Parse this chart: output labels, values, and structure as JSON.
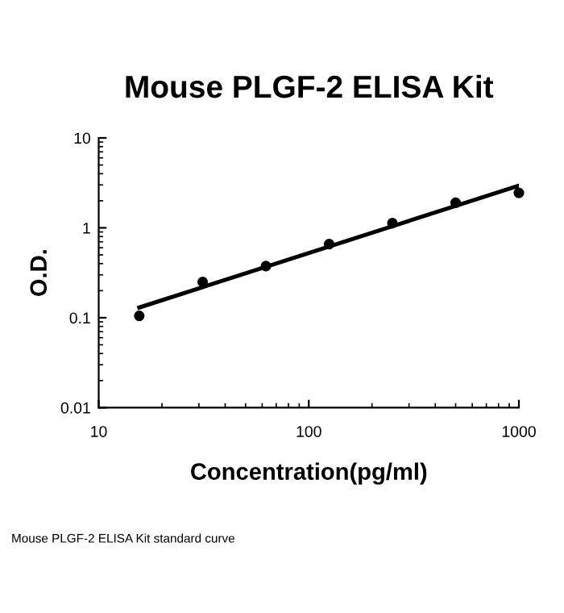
{
  "chart_data": {
    "type": "scatter",
    "title": "Mouse PLGF-2 ELISA Kit",
    "xlabel": "Concentration(pg/ml)",
    "ylabel": "O.D.",
    "log": "xy",
    "grid": false,
    "legend": false,
    "marker": "circle",
    "xlim": [
      10,
      1000
    ],
    "ylim": [
      0.01,
      10
    ],
    "xticks": [
      10,
      100,
      1000
    ],
    "yticks": [
      0.01,
      0.1,
      1,
      10
    ],
    "series": [
      {
        "color": "#000000",
        "x": [
          15.6,
          31.25,
          62.5,
          125,
          250,
          500,
          1000
        ],
        "values": [
          0.105,
          0.25,
          0.375,
          0.66,
          1.13,
          1.9,
          2.45
        ]
      },
      {
        "type": "line",
        "marker": "none",
        "color": "#000000",
        "x": [
          15.6,
          1000
        ],
        "values": [
          0.13,
          2.95
        ]
      }
    ],
    "annotations": [
      "Mouse PLGF-2 ELISA Kit standard curve"
    ]
  }
}
